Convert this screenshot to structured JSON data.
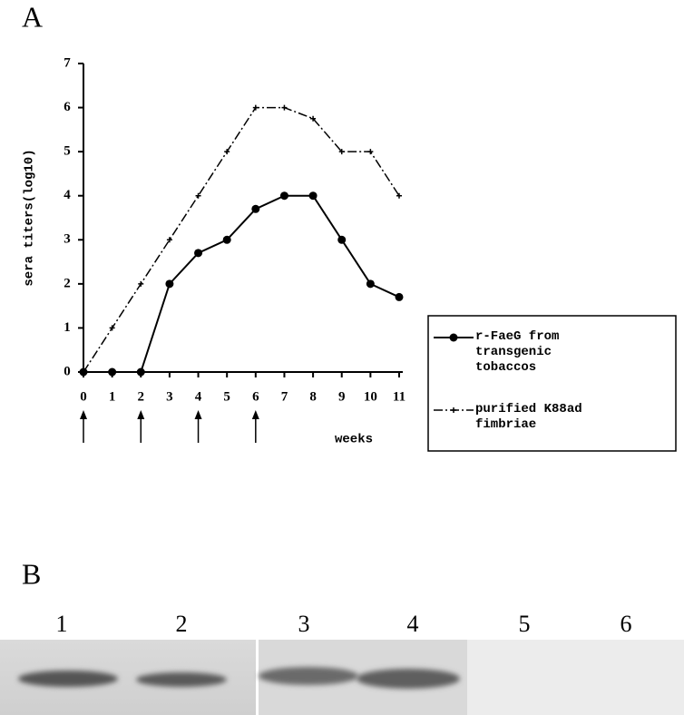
{
  "panel_a": {
    "label": "A"
  },
  "chart_data": {
    "type": "line",
    "ylabel": "sera titers(log10)",
    "xlabel": "weeks",
    "x": [
      0,
      1,
      2,
      3,
      4,
      5,
      6,
      7,
      8,
      9,
      10,
      11
    ],
    "series": [
      {
        "name": "r-FaeG from transgenic tobaccos",
        "color": "#000000",
        "marker": "circle",
        "linestyle": "solid",
        "values": [
          0,
          0,
          0,
          2,
          2.7,
          3,
          3.7,
          4,
          4,
          3,
          2,
          1.7
        ]
      },
      {
        "name": "purified K88ad fimbriae",
        "color": "#000000",
        "marker": "plus",
        "linestyle": "dashdot",
        "values": [
          0,
          1,
          2,
          3,
          4,
          5,
          6,
          6,
          5.75,
          5,
          5,
          4
        ]
      }
    ],
    "xlim": [
      0,
      11
    ],
    "xticks": [
      0,
      1,
      2,
      3,
      4,
      5,
      6,
      7,
      8,
      9,
      10,
      11
    ],
    "ylim": [
      0,
      7
    ],
    "yticks": [
      0,
      1,
      2,
      3,
      4,
      5,
      6,
      7
    ],
    "legend": "right",
    "grid": false
  },
  "panel_b": {
    "label": "B",
    "lanes": [
      "1",
      "2",
      "3",
      "4",
      "5",
      "6"
    ]
  }
}
